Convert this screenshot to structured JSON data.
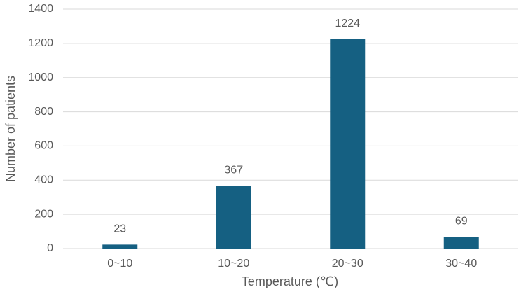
{
  "chart_data": {
    "type": "bar",
    "x_label": "Temperature (℃)",
    "y_label": "Number of patients",
    "categories": [
      "0~10",
      "10~20",
      "20~30",
      "30~40"
    ],
    "values": [
      23,
      367,
      1224,
      69
    ],
    "color": "#156082",
    "ylim": [
      0,
      1400
    ],
    "yticks": [
      0,
      200,
      400,
      600,
      800,
      1000,
      1200,
      1400
    ],
    "grid": true,
    "data_labels": true
  }
}
